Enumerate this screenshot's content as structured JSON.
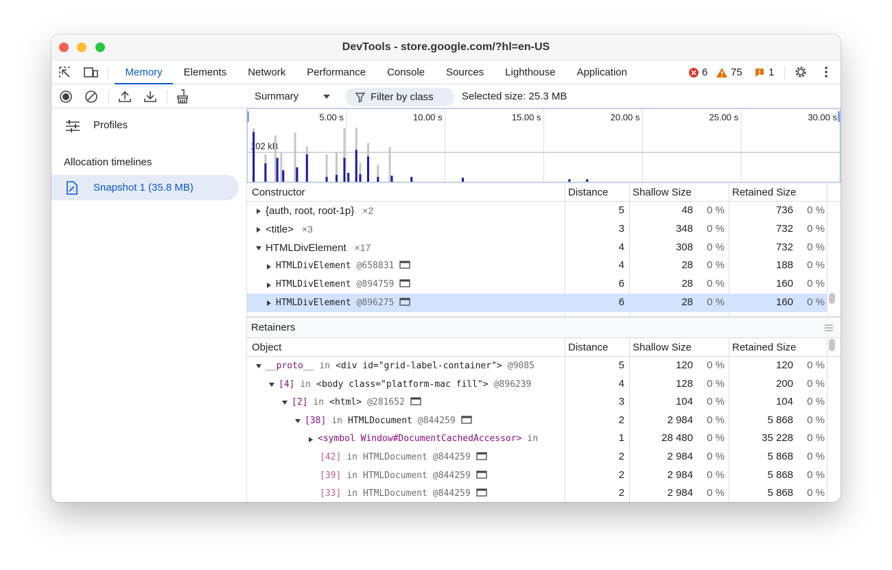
{
  "window": {
    "title": "DevTools - store.google.com/?hl=en-US"
  },
  "tabs": [
    "Memory",
    "Elements",
    "Network",
    "Performance",
    "Console",
    "Sources",
    "Lighthouse",
    "Application"
  ],
  "badges": {
    "errors": "6",
    "warnings": "75",
    "issues": "1"
  },
  "toolbar": {
    "view": "Summary",
    "filter": "Filter by class",
    "selected_size": "Selected size: 25.3 MB"
  },
  "sidebar": {
    "profiles": "Profiles",
    "section": "Allocation timelines",
    "snapshot": "Snapshot 1 (35.8 MB)"
  },
  "timeline": {
    "xlim": [
      0,
      30
    ],
    "ylim": [
      0,
      250
    ],
    "xticks": [
      {
        "value": 5,
        "label": "5.00 s"
      },
      {
        "value": 10,
        "label": "10.00 s"
      },
      {
        "value": 15,
        "label": "15.00 s"
      },
      {
        "value": 20,
        "label": "20.00 s"
      },
      {
        "value": 25,
        "label": "25.00 s"
      },
      {
        "value": 30,
        "label": "30.00 s"
      }
    ],
    "scale_line": {
      "value": 102,
      "label": "102 kB"
    },
    "series": [
      {
        "color": "#c6c6c6",
        "x": [
          0.3,
          0.9,
          1.4,
          1.7,
          2.4,
          3.0,
          4.0,
          4.5,
          4.9,
          5.5,
          5.7,
          6.1,
          6.6,
          7.2
        ],
        "values": [
          185,
          95,
          161,
          102,
          171,
          123,
          95,
          102,
          187,
          187,
          66,
          135,
          59,
          121
        ]
      },
      {
        "color": "#1a1aa6",
        "x": [
          0.3,
          0.9,
          1.5,
          1.8,
          2.5,
          3.0,
          4.0,
          4.5,
          4.9,
          5.1,
          5.5,
          5.7,
          6.1,
          6.6,
          7.3,
          8.3,
          10.9,
          16.3,
          17.2
        ],
        "values": [
          173,
          64,
          83,
          40,
          50,
          95,
          17,
          24,
          83,
          31,
          111,
          26,
          88,
          17,
          21,
          17,
          14,
          9,
          9
        ]
      }
    ]
  },
  "constructors": {
    "columns": [
      "Constructor",
      "Distance",
      "Shallow Size",
      "Retained Size"
    ],
    "rows": [
      {
        "depth": 0,
        "state": "collapsed",
        "name": "{auth, root, root-1p}",
        "count": "×2",
        "distance": "5",
        "shallow": "48",
        "shallow_pct": "0 %",
        "retained": "736",
        "retained_pct": "0 %"
      },
      {
        "depth": 0,
        "state": "collapsed",
        "name": "<title>",
        "count": "×3",
        "distance": "3",
        "shallow": "348",
        "shallow_pct": "0 %",
        "retained": "732",
        "retained_pct": "0 %"
      },
      {
        "depth": 0,
        "state": "expanded",
        "name": "HTMLDivElement",
        "count": "×17",
        "distance": "4",
        "shallow": "308",
        "shallow_pct": "0 %",
        "retained": "732",
        "retained_pct": "0 %"
      },
      {
        "depth": 1,
        "state": "collapsed",
        "name": "HTMLDivElement",
        "id": "@658831",
        "node_icon": true,
        "distance": "4",
        "shallow": "28",
        "shallow_pct": "0 %",
        "retained": "188",
        "retained_pct": "0 %"
      },
      {
        "depth": 1,
        "state": "collapsed",
        "name": "HTMLDivElement",
        "id": "@894759",
        "node_icon": true,
        "distance": "6",
        "shallow": "28",
        "shallow_pct": "0 %",
        "retained": "160",
        "retained_pct": "0 %"
      },
      {
        "depth": 1,
        "state": "collapsed",
        "name": "HTMLDivElement",
        "id": "@896275",
        "node_icon": true,
        "selected": true,
        "distance": "6",
        "shallow": "28",
        "shallow_pct": "0 %",
        "retained": "160",
        "retained_pct": "0 %"
      }
    ]
  },
  "retainers": {
    "title": "Retainers",
    "columns": [
      "Object",
      "Distance",
      "Shallow Size",
      "Retained Size"
    ],
    "rows": [
      {
        "depth": 0,
        "state": "expanded",
        "key": "__proto__",
        "in": "in",
        "object": "<div id=\"grid-label-container\">",
        "id": "@9085",
        "distance": "5",
        "shallow": "120",
        "shallow_pct": "0 %",
        "retained": "120",
        "retained_pct": "0 %"
      },
      {
        "depth": 1,
        "state": "expanded",
        "key": "[4]",
        "in": "in",
        "object": "<body class=\"platform-mac fill\">",
        "id": "@896239",
        "distance": "4",
        "shallow": "128",
        "shallow_pct": "0 %",
        "retained": "200",
        "retained_pct": "0 %"
      },
      {
        "depth": 2,
        "state": "expanded",
        "key": "[2]",
        "in": "in",
        "object": "<html>",
        "id": "@281652",
        "node_icon": true,
        "distance": "3",
        "shallow": "104",
        "shallow_pct": "0 %",
        "retained": "104",
        "retained_pct": "0 %"
      },
      {
        "depth": 3,
        "state": "expanded",
        "key": "[38]",
        "in": "in",
        "object": "HTMLDocument",
        "id": "@844259",
        "node_icon": true,
        "distance": "2",
        "shallow": "2 984",
        "shallow_pct": "0 %",
        "retained": "5 868",
        "retained_pct": "0 %"
      },
      {
        "depth": 4,
        "state": "collapsed",
        "key": "<symbol Window#DocumentCachedAccessor>",
        "in": "in",
        "distance": "1",
        "shallow": "28 480",
        "shallow_pct": "0 %",
        "retained": "35 228",
        "retained_pct": "0 %"
      },
      {
        "depth": 5,
        "state": "leaf",
        "dimmed": true,
        "key": "[42]",
        "in": "in",
        "object": "HTMLDocument",
        "id": "@844259",
        "node_icon": true,
        "distance": "2",
        "shallow": "2 984",
        "shallow_pct": "0 %",
        "retained": "5 868",
        "retained_pct": "0 %"
      },
      {
        "depth": 5,
        "state": "leaf",
        "dimmed": true,
        "key": "[39]",
        "in": "in",
        "object": "HTMLDocument",
        "id": "@844259",
        "node_icon": true,
        "distance": "2",
        "shallow": "2 984",
        "shallow_pct": "0 %",
        "retained": "5 868",
        "retained_pct": "0 %"
      },
      {
        "depth": 5,
        "state": "leaf",
        "dimmed": true,
        "key": "[33]",
        "in": "in",
        "object": "HTMLDocument",
        "id": "@844259",
        "node_icon": true,
        "distance": "2",
        "shallow": "2 984",
        "shallow_pct": "0 %",
        "retained": "5 868",
        "retained_pct": "0 %"
      }
    ]
  }
}
